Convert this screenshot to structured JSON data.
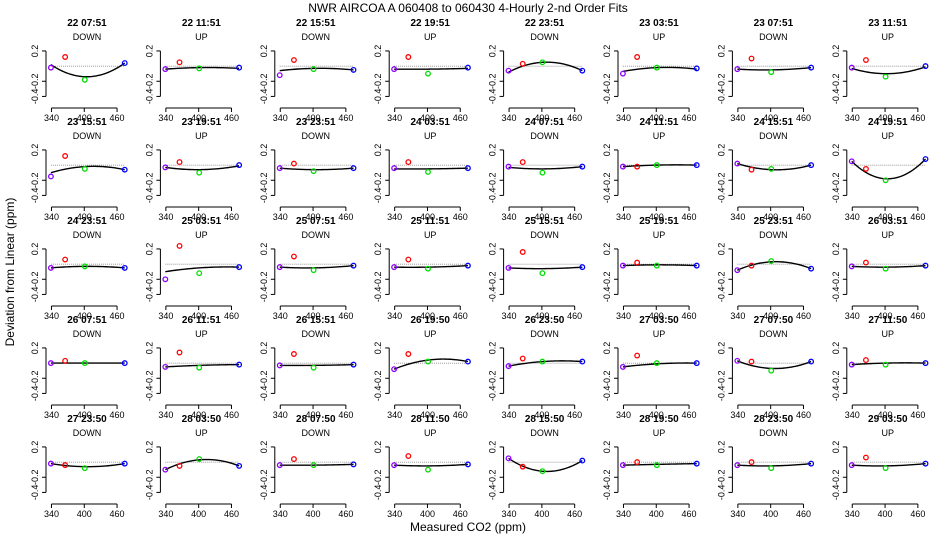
{
  "chart_data": {
    "type": "scatter",
    "title": "NWR   AIRCOA A   060408 to 060430   4-Hourly 2-nd Order Fits",
    "xlabel": "Measured CO2 (ppm)",
    "ylabel": "Deviation from Linear (ppm)",
    "xlim": [
      330,
      480
    ],
    "ylim": [
      -0.5,
      0.45
    ],
    "xticks": [
      "340",
      "400",
      "460"
    ],
    "yticks": [
      "0.2",
      "-0.2",
      "-0.4"
    ],
    "standards_x": [
      339,
      365,
      401,
      474
    ],
    "point_colors": [
      "#8b00ff",
      "#ff0000",
      "#00dd00",
      "#0000ff"
    ],
    "panels": [
      {
        "label": "22 07:51",
        "dir": "DOWN",
        "dev": [
          -0.02,
          0.12,
          -0.18,
          0.04
        ],
        "fit": [
          0.02,
          -0.08,
          -0.14,
          0.04
        ]
      },
      {
        "label": "22 11:51",
        "dir": "UP",
        "dev": [
          -0.04,
          0.05,
          -0.03,
          -0.02
        ],
        "fit": [
          -0.04,
          -0.02,
          -0.02,
          -0.03
        ]
      },
      {
        "label": "22 15:51",
        "dir": "DOWN",
        "dev": [
          -0.12,
          0.08,
          -0.04,
          -0.05
        ],
        "fit": [
          -0.06,
          -0.02,
          -0.03,
          -0.05
        ]
      },
      {
        "label": "22 19:51",
        "dir": "UP",
        "dev": [
          -0.04,
          0.12,
          -0.1,
          -0.02
        ],
        "fit": [
          -0.04,
          -0.04,
          -0.04,
          -0.03
        ]
      },
      {
        "label": "22 23:51",
        "dir": "DOWN",
        "dev": [
          -0.06,
          0.03,
          0.05,
          -0.06
        ],
        "fit": [
          -0.08,
          0.0,
          0.05,
          -0.06
        ]
      },
      {
        "label": "23 03:51",
        "dir": "UP",
        "dev": [
          -0.1,
          0.12,
          -0.02,
          -0.03
        ],
        "fit": [
          -0.07,
          -0.03,
          -0.02,
          -0.04
        ]
      },
      {
        "label": "23 07:51",
        "dir": "DOWN",
        "dev": [
          -0.04,
          0.1,
          -0.08,
          -0.02
        ],
        "fit": [
          -0.04,
          -0.04,
          -0.05,
          -0.02
        ]
      },
      {
        "label": "23 11:51",
        "dir": "UP",
        "dev": [
          -0.02,
          0.08,
          -0.14,
          0.0
        ],
        "fit": [
          -0.03,
          -0.07,
          -0.1,
          -0.01
        ]
      },
      {
        "label": "23 15:51",
        "dir": "DOWN",
        "dev": [
          -0.15,
          0.12,
          -0.05,
          -0.06
        ],
        "fit": [
          -0.1,
          -0.03,
          -0.02,
          -0.06
        ]
      },
      {
        "label": "23 19:51",
        "dir": "UP",
        "dev": [
          -0.03,
          0.04,
          -0.1,
          0.0
        ],
        "fit": [
          -0.03,
          -0.04,
          -0.06,
          -0.01
        ]
      },
      {
        "label": "23 23:51",
        "dir": "DOWN",
        "dev": [
          -0.04,
          0.02,
          -0.08,
          -0.04
        ],
        "fit": [
          -0.04,
          -0.05,
          -0.06,
          -0.04
        ]
      },
      {
        "label": "24 03:51",
        "dir": "UP",
        "dev": [
          -0.04,
          0.04,
          -0.09,
          -0.04
        ],
        "fit": [
          -0.05,
          -0.05,
          -0.05,
          -0.04
        ]
      },
      {
        "label": "24 07:51",
        "dir": "DOWN",
        "dev": [
          -0.02,
          0.04,
          -0.1,
          -0.02
        ],
        "fit": [
          -0.03,
          -0.05,
          -0.05,
          -0.02
        ]
      },
      {
        "label": "24 11:51",
        "dir": "UP",
        "dev": [
          -0.02,
          -0.02,
          0.0,
          0.0
        ],
        "fit": [
          -0.02,
          -0.01,
          0.0,
          0.0
        ]
      },
      {
        "label": "24 15:51",
        "dir": "DOWN",
        "dev": [
          0.02,
          -0.06,
          -0.05,
          0.0
        ],
        "fit": [
          0.02,
          -0.04,
          -0.06,
          0.0
        ]
      },
      {
        "label": "24 19:51",
        "dir": "UP",
        "dev": [
          0.05,
          -0.05,
          -0.2,
          0.08
        ],
        "fit": [
          0.05,
          -0.08,
          -0.18,
          0.08
        ]
      },
      {
        "label": "24 23:51",
        "dir": "DOWN",
        "dev": [
          -0.05,
          0.06,
          -0.03,
          -0.05
        ],
        "fit": [
          -0.05,
          -0.03,
          -0.03,
          -0.05
        ]
      },
      {
        "label": "25 03:51",
        "dir": "UP",
        "dev": [
          -0.2,
          0.24,
          -0.12,
          -0.04
        ],
        "fit": [
          -0.1,
          -0.06,
          -0.05,
          -0.04
        ]
      },
      {
        "label": "25 07:51",
        "dir": "DOWN",
        "dev": [
          -0.04,
          0.1,
          -0.08,
          -0.02
        ],
        "fit": [
          -0.04,
          -0.04,
          -0.05,
          -0.02
        ]
      },
      {
        "label": "25 11:51",
        "dir": "UP",
        "dev": [
          -0.04,
          0.06,
          -0.06,
          -0.02
        ],
        "fit": [
          -0.04,
          -0.04,
          -0.04,
          -0.02
        ]
      },
      {
        "label": "25 15:51",
        "dir": "DOWN",
        "dev": [
          -0.05,
          0.16,
          -0.12,
          -0.04
        ],
        "fit": [
          -0.05,
          -0.05,
          -0.06,
          -0.04
        ]
      },
      {
        "label": "25 19:51",
        "dir": "UP",
        "dev": [
          -0.02,
          0.02,
          -0.02,
          -0.02
        ],
        "fit": [
          -0.02,
          -0.01,
          -0.01,
          -0.02
        ]
      },
      {
        "label": "25 23:51",
        "dir": "DOWN",
        "dev": [
          -0.08,
          -0.02,
          0.04,
          -0.06
        ],
        "fit": [
          -0.08,
          -0.02,
          0.03,
          -0.06
        ]
      },
      {
        "label": "26 03:51",
        "dir": "UP",
        "dev": [
          -0.03,
          0.02,
          -0.06,
          -0.02
        ],
        "fit": [
          -0.03,
          -0.04,
          -0.04,
          -0.02
        ]
      },
      {
        "label": "26 07:51",
        "dir": "DOWN",
        "dev": [
          0.0,
          0.03,
          0.0,
          0.0
        ],
        "fit": [
          0.0,
          0.0,
          0.0,
          0.0
        ]
      },
      {
        "label": "26 11:51",
        "dir": "UP",
        "dev": [
          -0.05,
          0.14,
          -0.06,
          -0.02
        ],
        "fit": [
          -0.05,
          -0.04,
          -0.03,
          -0.02
        ]
      },
      {
        "label": "26 15:51",
        "dir": "DOWN",
        "dev": [
          -0.03,
          0.12,
          -0.06,
          -0.02
        ],
        "fit": [
          -0.03,
          -0.03,
          -0.03,
          -0.02
        ]
      },
      {
        "label": "26 19:50",
        "dir": "UP",
        "dev": [
          -0.08,
          0.12,
          0.02,
          0.02
        ],
        "fit": [
          -0.08,
          0.0,
          0.04,
          0.02
        ]
      },
      {
        "label": "26 23:50",
        "dir": "DOWN",
        "dev": [
          -0.04,
          0.06,
          0.02,
          0.02
        ],
        "fit": [
          -0.04,
          0.0,
          0.02,
          0.02
        ]
      },
      {
        "label": "27 03:50",
        "dir": "UP",
        "dev": [
          -0.05,
          0.1,
          0.0,
          0.0
        ],
        "fit": [
          -0.05,
          -0.02,
          -0.01,
          0.0
        ]
      },
      {
        "label": "27 07:50",
        "dir": "DOWN",
        "dev": [
          0.03,
          0.02,
          -0.1,
          0.02
        ],
        "fit": [
          0.03,
          -0.04,
          -0.07,
          0.02
        ]
      },
      {
        "label": "27 11:50",
        "dir": "UP",
        "dev": [
          -0.02,
          0.04,
          -0.02,
          0.0
        ],
        "fit": [
          -0.02,
          -0.01,
          0.0,
          0.0
        ]
      },
      {
        "label": "27 23:50",
        "dir": "DOWN",
        "dev": [
          -0.02,
          -0.04,
          -0.08,
          -0.02
        ],
        "fit": [
          -0.02,
          -0.05,
          -0.06,
          -0.02
        ]
      },
      {
        "label": "28 03:50",
        "dir": "UP",
        "dev": [
          -0.1,
          -0.05,
          0.04,
          -0.05
        ],
        "fit": [
          -0.1,
          -0.02,
          0.03,
          -0.05
        ]
      },
      {
        "label": "28 07:50",
        "dir": "DOWN",
        "dev": [
          -0.04,
          0.04,
          -0.04,
          -0.03
        ],
        "fit": [
          -0.04,
          -0.04,
          -0.04,
          -0.03
        ]
      },
      {
        "label": "28 11:50",
        "dir": "UP",
        "dev": [
          -0.04,
          0.08,
          -0.1,
          -0.03
        ],
        "fit": [
          -0.04,
          -0.05,
          -0.05,
          -0.03
        ]
      },
      {
        "label": "28 15:50",
        "dir": "DOWN",
        "dev": [
          0.05,
          -0.06,
          -0.12,
          0.02
        ],
        "fit": [
          0.05,
          -0.06,
          -0.12,
          0.02
        ]
      },
      {
        "label": "28 19:50",
        "dir": "UP",
        "dev": [
          -0.04,
          0.0,
          -0.04,
          -0.02
        ],
        "fit": [
          -0.04,
          -0.03,
          -0.03,
          -0.02
        ]
      },
      {
        "label": "28 23:50",
        "dir": "DOWN",
        "dev": [
          -0.04,
          0.0,
          -0.08,
          -0.02
        ],
        "fit": [
          -0.04,
          -0.04,
          -0.05,
          -0.02
        ]
      },
      {
        "label": "29 03:50",
        "dir": "UP",
        "dev": [
          -0.04,
          0.06,
          -0.08,
          -0.02
        ],
        "fit": [
          -0.04,
          -0.04,
          -0.05,
          -0.02
        ]
      }
    ]
  }
}
